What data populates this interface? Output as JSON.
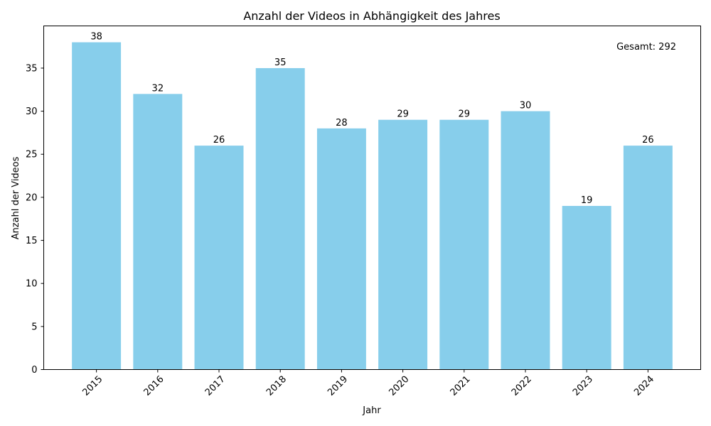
{
  "chart_data": {
    "type": "bar",
    "title": "Anzahl der Videos in Abhängigkeit des Jahres",
    "xlabel": "Jahr",
    "ylabel": "Anzahl der Videos",
    "categories": [
      "2015",
      "2016",
      "2017",
      "2018",
      "2019",
      "2020",
      "2021",
      "2022",
      "2023",
      "2024"
    ],
    "values": [
      38,
      32,
      26,
      35,
      28,
      29,
      29,
      30,
      19,
      26
    ],
    "ylim": [
      0,
      39.9
    ],
    "yticks": [
      0,
      5,
      10,
      15,
      20,
      25,
      30,
      35
    ],
    "bar_color": "#87ceeb",
    "x_tick_rotation_deg": 45,
    "annotation": "Gesamt: 292",
    "grid": false
  }
}
